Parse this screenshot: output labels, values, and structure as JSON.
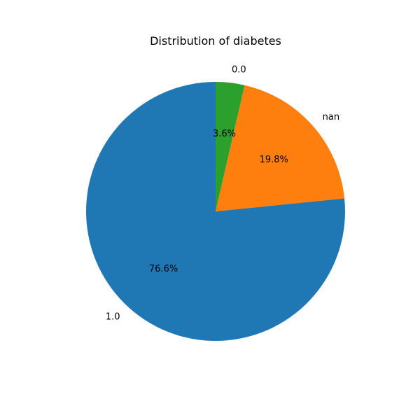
{
  "chart_data": {
    "type": "pie",
    "title": "Distribution of diabetes",
    "start_angle": 90,
    "direction": "counterclockwise",
    "slices": [
      {
        "label": "1.0",
        "pct_label": "76.6%",
        "value": 76.6,
        "color": "#1f77b4"
      },
      {
        "label": "nan",
        "pct_label": "19.8%",
        "value": 19.8,
        "color": "#ff7f0e"
      },
      {
        "label": "0.0",
        "pct_label": "3.6%",
        "value": 3.6,
        "color": "#2ca02c"
      }
    ]
  }
}
